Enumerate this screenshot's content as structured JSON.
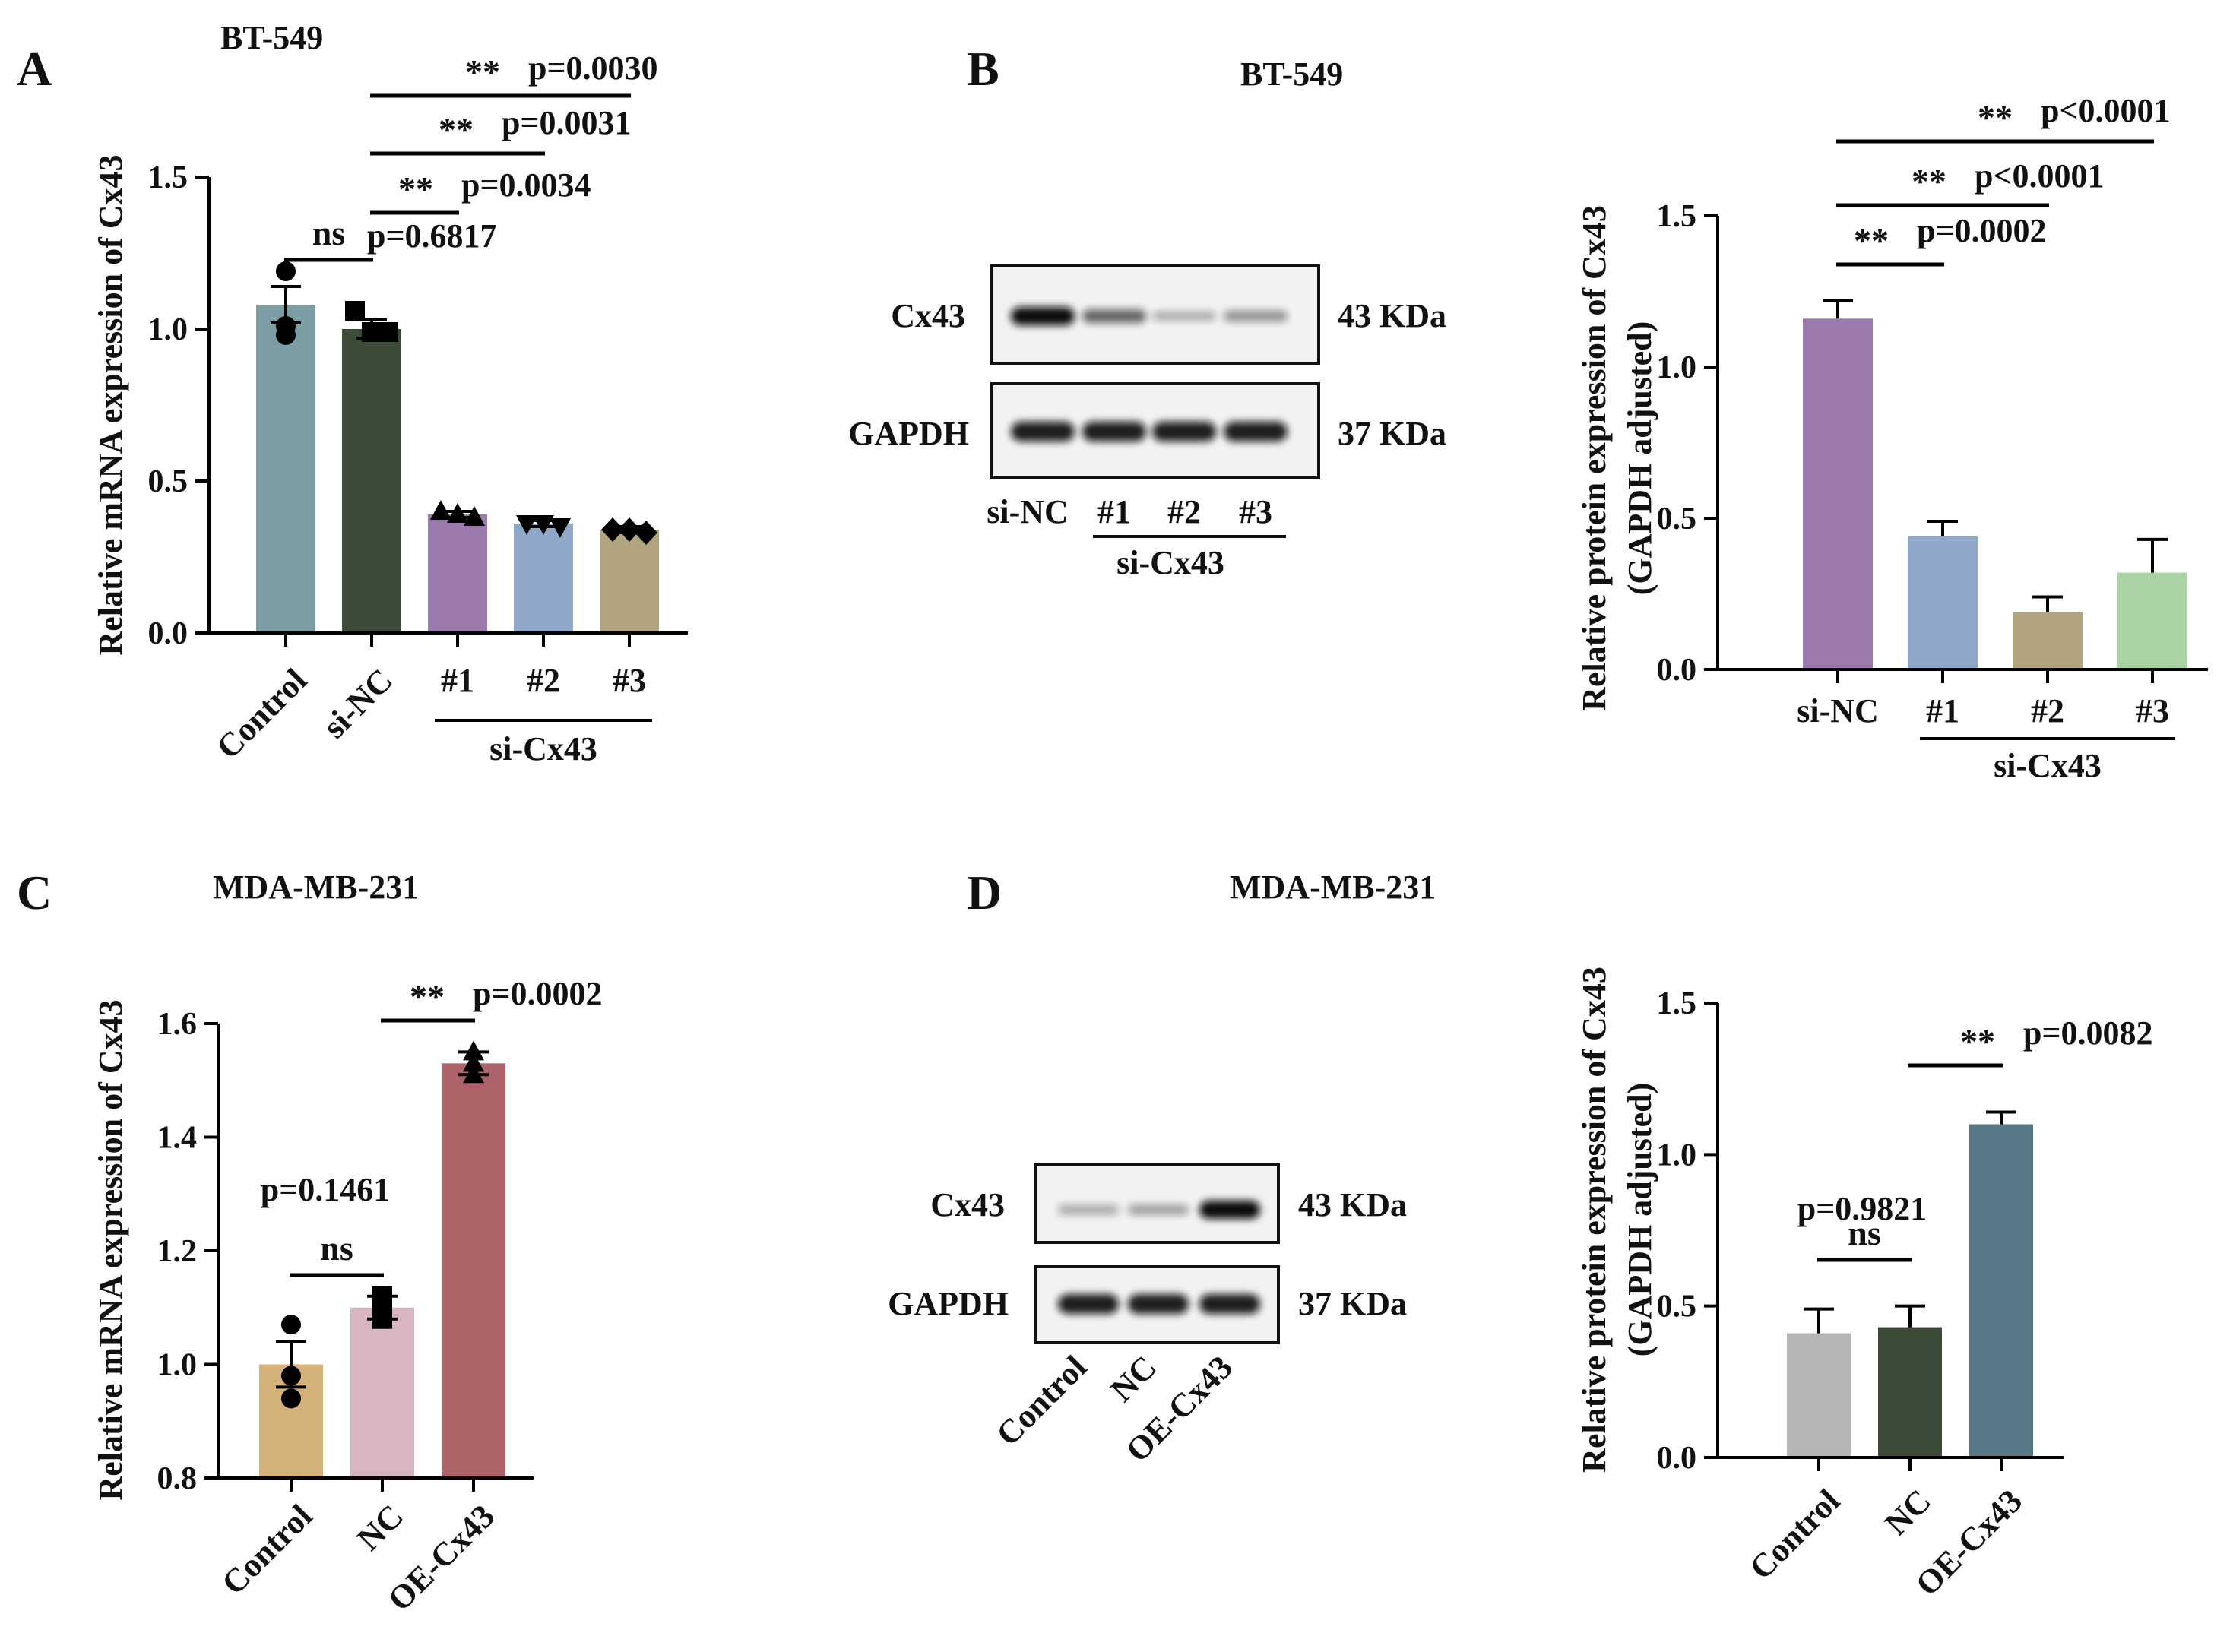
{
  "panels": [
    {
      "letter": "A",
      "title": "BT-549"
    },
    {
      "letter": "B",
      "title": "BT-549"
    },
    {
      "letter": "C",
      "title": "MDA-MB-231"
    },
    {
      "letter": "D",
      "title": "MDA-MB-231"
    }
  ],
  "blots": [
    {
      "rows": [
        {
          "protein": "Cx43",
          "size": "43 KDa"
        },
        {
          "protein": "GAPDH",
          "size": "37 KDa"
        }
      ],
      "lanes": [
        "si-NC",
        "#1",
        "#2",
        "#3"
      ],
      "group_label": "si-Cx43",
      "cx43_intensity": [
        1.0,
        0.55,
        0.18,
        0.32
      ]
    },
    {
      "rows": [
        {
          "protein": "Cx43",
          "size": "43 KDa"
        },
        {
          "protein": "GAPDH",
          "size": "37 KDa"
        }
      ],
      "lanes": [
        "Control",
        "NC",
        "OE-Cx43"
      ],
      "cx43_intensity": [
        0.2,
        0.25,
        1.0
      ]
    }
  ],
  "chart_data": [
    {
      "type": "bar",
      "panel": "A",
      "ylabel": "Relative mRNA expression of Cx43",
      "ylim": [
        0,
        1.5
      ],
      "yticks": [
        "0.0",
        "0.5",
        "1.0",
        "1.5"
      ],
      "categories": [
        "Control",
        "si-NC",
        "#1",
        "#2",
        "#3"
      ],
      "rotated": [
        true,
        true,
        false,
        false,
        false
      ],
      "group_label": "si-Cx43",
      "group_span": [
        2,
        4
      ],
      "values": [
        1.08,
        1.0,
        0.39,
        0.36,
        0.34
      ],
      "errors": [
        0.06,
        0.03,
        0.01,
        0.01,
        0.01
      ],
      "colors": [
        "#7b9ea5",
        "#3d4c39",
        "#9b7aad",
        "#8fa7c9",
        "#b1a47f"
      ],
      "points": [
        [
          1.19,
          1.01,
          0.98
        ],
        [
          1.06,
          0.99,
          0.99
        ],
        [
          0.4,
          0.39,
          0.38
        ],
        [
          0.36,
          0.36,
          0.35
        ],
        [
          0.34,
          0.34,
          0.33
        ]
      ],
      "markers": [
        "circle",
        "square",
        "triangle",
        "triangle-down",
        "diamond"
      ],
      "comparisons": [
        {
          "from": 0,
          "to": 1,
          "stars": "ns",
          "p": "p=0.6817"
        },
        {
          "from": 1,
          "to": 2,
          "stars": "**",
          "p": "p=0.0034"
        },
        {
          "from": 1,
          "to": 3,
          "stars": "**",
          "p": "p=0.0031"
        },
        {
          "from": 1,
          "to": 4,
          "stars": "**",
          "p": "p=0.0030"
        }
      ]
    },
    {
      "type": "bar",
      "panel": "B",
      "ylabel": "Relative protein expression of Cx43",
      "ylabel2": "(GAPDH adjusted)",
      "ylim": [
        0,
        1.5
      ],
      "yticks": [
        "0.0",
        "0.5",
        "1.0",
        "1.5"
      ],
      "categories": [
        "si-NC",
        "#1",
        "#2",
        "#3"
      ],
      "rotated": [
        false,
        false,
        false,
        false
      ],
      "group_label": "si-Cx43",
      "group_span": [
        1,
        3
      ],
      "values": [
        1.16,
        0.44,
        0.19,
        0.32
      ],
      "errors": [
        0.06,
        0.05,
        0.05,
        0.11
      ],
      "colors": [
        "#9a79ad",
        "#8fa7c9",
        "#b1a47f",
        "#a9d2a5"
      ],
      "comparisons": [
        {
          "from": 0,
          "to": 1,
          "stars": "**",
          "p": "p=0.0002"
        },
        {
          "from": 0,
          "to": 2,
          "stars": "**",
          "p": "p<0.0001"
        },
        {
          "from": 0,
          "to": 3,
          "stars": "**",
          "p": "p<0.0001"
        }
      ]
    },
    {
      "type": "bar",
      "panel": "C",
      "ylabel": "Relative mRNA expression of Cx43",
      "ylim": [
        0.8,
        1.6
      ],
      "yticks": [
        "0.8",
        "1.0",
        "1.2",
        "1.4",
        "1.6"
      ],
      "categories": [
        "Control",
        "NC",
        "OE-Cx43"
      ],
      "rotated": [
        true,
        true,
        true
      ],
      "values": [
        1.0,
        1.1,
        1.53
      ],
      "errors": [
        0.04,
        0.02,
        0.02
      ],
      "colors": [
        "#d5b27c",
        "#d9b5c0",
        "#ad6368"
      ],
      "points": [
        [
          1.07,
          0.98,
          0.94
        ],
        [
          1.12,
          1.11,
          1.08
        ],
        [
          1.55,
          1.53,
          1.51
        ]
      ],
      "markers": [
        "circle",
        "square",
        "triangle"
      ],
      "comparisons": [
        {
          "from": 0,
          "to": 1,
          "stars": "ns",
          "p": "p=0.1461",
          "p_above": true
        },
        {
          "from": 1,
          "to": 2,
          "stars": "**",
          "p": "p=0.0002"
        }
      ]
    },
    {
      "type": "bar",
      "panel": "D",
      "ylabel": "Relative protein expression of Cx43",
      "ylabel2": "(GAPDH adjusted)",
      "ylim": [
        0,
        1.5
      ],
      "yticks": [
        "0.0",
        "0.5",
        "1.0",
        "1.5"
      ],
      "categories": [
        "Control",
        "NC",
        "OE-Cx43"
      ],
      "rotated": [
        true,
        true,
        true
      ],
      "values": [
        0.41,
        0.43,
        1.1
      ],
      "errors": [
        0.08,
        0.07,
        0.04
      ],
      "colors": [
        "#b5b5b7",
        "#3d4c39",
        "#587a87"
      ],
      "comparisons": [
        {
          "from": 0,
          "to": 1,
          "stars": "ns",
          "p": "p=0.9821",
          "p_above": true
        },
        {
          "from": 1,
          "to": 2,
          "stars": "**",
          "p": "p=0.0082"
        }
      ]
    }
  ]
}
